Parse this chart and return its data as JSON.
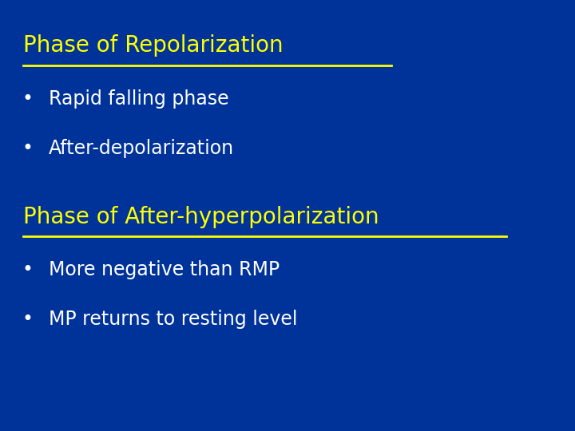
{
  "background_color": "#003399",
  "title1": "Phase of Repolarization",
  "title1_color": "#FFFF00",
  "bullets1": [
    "Rapid falling phase",
    "After-depolarization"
  ],
  "bullet1_color": "#FFFFFF",
  "title2": "Phase of After-hyperpolarization",
  "title2_color": "#FFFF00",
  "bullets2": [
    "More negative than RMP",
    "MP returns to resting level"
  ],
  "bullet2_color": "#FFFFFF",
  "title_fontsize": 20,
  "bullet_fontsize": 17,
  "bullet_symbol": "•",
  "figsize": [
    7.2,
    5.4
  ],
  "dpi": 100
}
